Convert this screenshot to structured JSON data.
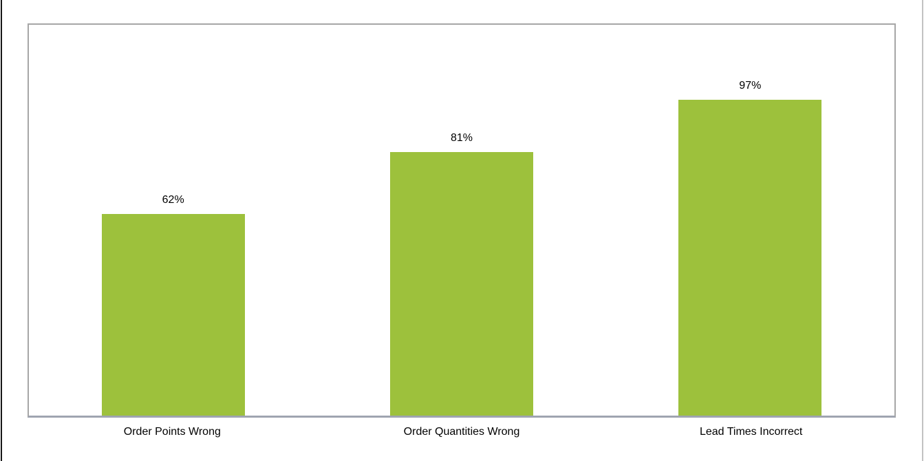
{
  "page": {
    "background": "#ffffff",
    "left_edge_color": "#161616",
    "right_edge_color": "#c2c2c2"
  },
  "chart_data": {
    "type": "bar",
    "title": "",
    "xlabel": "",
    "ylabel": "",
    "categories": [
      "Order Points Wrong",
      "Order Quantities Wrong",
      "Lead Times Incorrect"
    ],
    "values": [
      62,
      81,
      97
    ],
    "value_labels": [
      "62%",
      "81%",
      "97%"
    ],
    "ylim": [
      0,
      120
    ],
    "grid": false,
    "legend": false,
    "data_labels_position": "above-bars",
    "bar_color": "#9dc13c",
    "frame_border_color": "#a6a6a6",
    "axis_line_color": "#9fa4b0",
    "label_color": "#000000"
  }
}
